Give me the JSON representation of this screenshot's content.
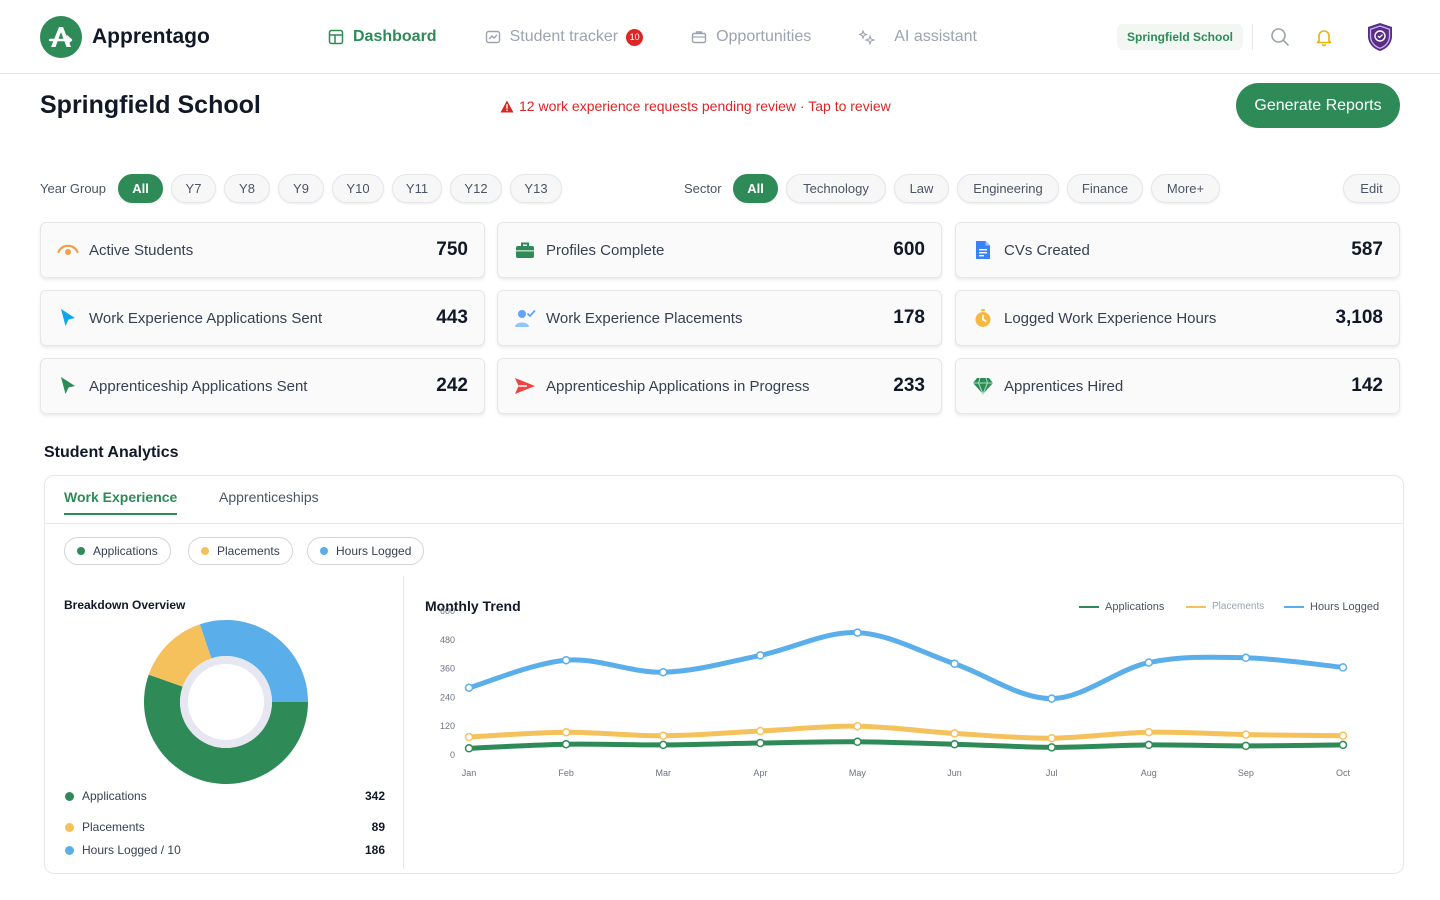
{
  "app": {
    "name": "Apprentago"
  },
  "nav": [
    {
      "label": "Dashboard",
      "active": true
    },
    {
      "label": "Student tracker",
      "badge": "10"
    },
    {
      "label": "Opportunities"
    },
    {
      "label": "AI assistant"
    }
  ],
  "topbar": {
    "school_chip": "Springfield School"
  },
  "header": {
    "title": "Springfield School",
    "alert": "12 work experience requests pending review · Tap to review",
    "generate_button": "Generate Reports"
  },
  "filters": {
    "year_label": "Year Group",
    "years": [
      "All",
      "Y7",
      "Y8",
      "Y9",
      "Y10",
      "Y11",
      "Y12",
      "Y13"
    ],
    "sector_label": "Sector",
    "sectors": [
      "All",
      "Technology",
      "Law",
      "Engineering",
      "Finance",
      "More+"
    ],
    "edit_label": "Edit"
  },
  "stats": [
    {
      "label": "Active Students",
      "value": "750",
      "icon": "eye-icon",
      "color": "#f0a04b"
    },
    {
      "label": "Profiles Complete",
      "value": "600",
      "icon": "briefcase-icon",
      "color": "#2e8b57"
    },
    {
      "label": "CVs Created",
      "value": "587",
      "icon": "document-icon",
      "color": "#3b82f6"
    },
    {
      "label": "Work Experience Applications Sent",
      "value": "443",
      "icon": "cursor-icon",
      "color": "#0ea5e9"
    },
    {
      "label": "Work Experience Placements",
      "value": "178",
      "icon": "person-check-icon",
      "color": "#60a5fa"
    },
    {
      "label": "Logged Work Experience Hours",
      "value": "3,108",
      "icon": "stopwatch-icon",
      "color": "#f5b942"
    },
    {
      "label": "Apprenticeship Applications Sent",
      "value": "242",
      "icon": "cursor-icon",
      "color": "#2e8b57"
    },
    {
      "label": "Apprenticeship Applications in Progress",
      "value": "233",
      "icon": "paper-plane-icon",
      "color": "#ef4444"
    },
    {
      "label": "Apprentices Hired",
      "value": "142",
      "icon": "diamond-icon",
      "color": "#2e8b57"
    }
  ],
  "analytics": {
    "title": "Student Analytics",
    "tabs": [
      "Work Experience",
      "Apprenticeships"
    ],
    "filter_pills": [
      "Applications",
      "Placements",
      "Hours Logged"
    ],
    "breakdown": {
      "title": "Breakdown Overview",
      "items": [
        {
          "label": "Applications",
          "value": "342",
          "color": "#2e8b57"
        },
        {
          "label": "Placements",
          "value": "89",
          "color": "#f5c15c"
        },
        {
          "label": "Hours Logged / 10",
          "value": "186",
          "color": "#5aaeea"
        }
      ]
    },
    "trend_title": "Monthly Trend"
  },
  "chart_data": [
    {
      "type": "pie",
      "title": "Breakdown Overview",
      "labels": [
        "Applications",
        "Placements",
        "Hours Logged / 10"
      ],
      "values": [
        342,
        89,
        186
      ],
      "colors": [
        "#2e8b57",
        "#f5c15c",
        "#5aaeea"
      ]
    },
    {
      "type": "line",
      "title": "Monthly Trend",
      "categories": [
        "Jan",
        "Feb",
        "Mar",
        "Apr",
        "May",
        "Jun",
        "Jul",
        "Aug",
        "Sep",
        "Oct"
      ],
      "series": [
        {
          "name": "Applications",
          "color": "#2e8b57",
          "values": [
            28,
            45,
            42,
            50,
            55,
            45,
            32,
            42,
            38,
            42
          ]
        },
        {
          "name": "Placements",
          "color": "#f5c15c",
          "values": [
            75,
            95,
            80,
            100,
            120,
            90,
            70,
            95,
            85,
            80
          ]
        },
        {
          "name": "Hours Logged",
          "color": "#5aaeea",
          "values": [
            280,
            395,
            345,
            415,
            510,
            380,
            235,
            385,
            405,
            365
          ]
        }
      ],
      "yticks": [
        "0",
        "120",
        "240",
        "360",
        "480",
        "600"
      ],
      "ylim": [
        0,
        600
      ],
      "legend": "top-right",
      "grid": false
    }
  ]
}
